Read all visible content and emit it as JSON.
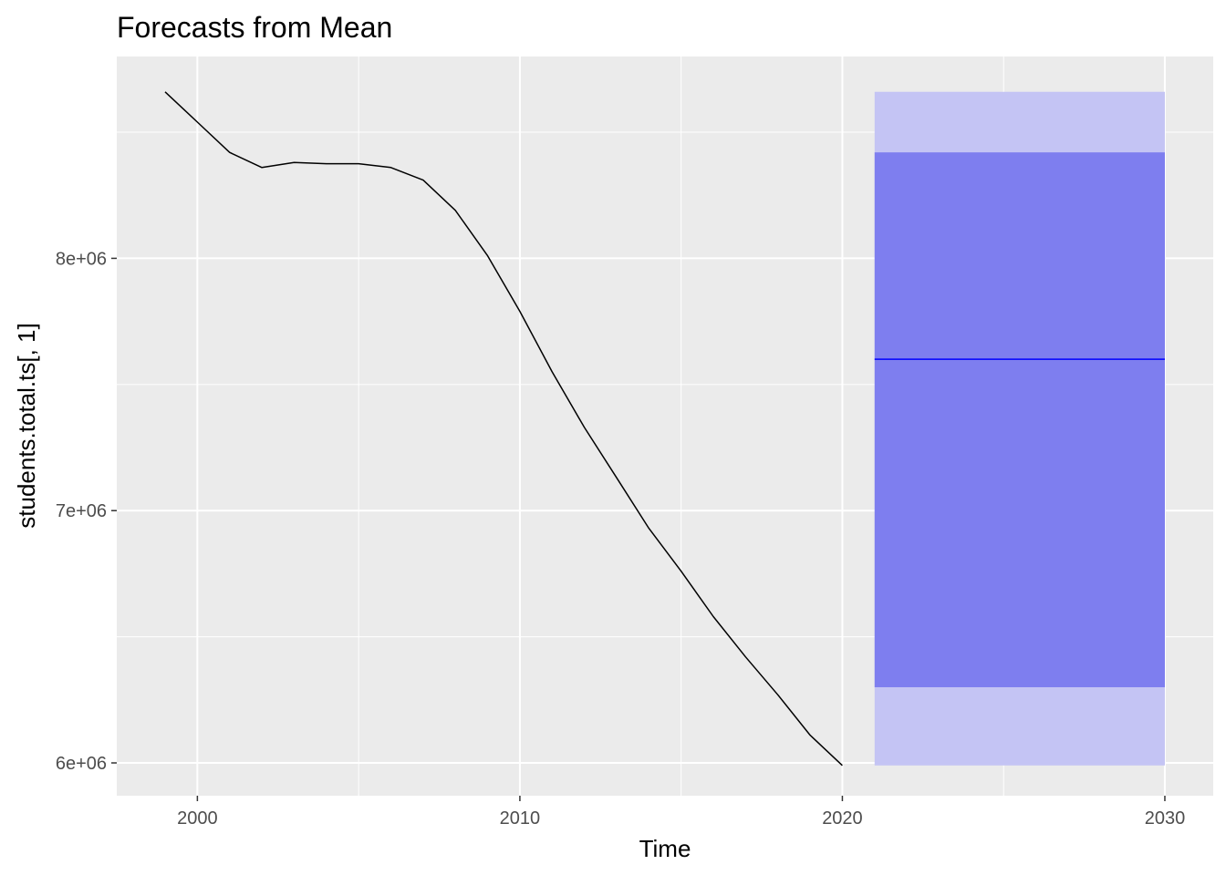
{
  "chart_data": {
    "type": "line",
    "title": "Forecasts from Mean",
    "xlabel": "Time",
    "ylabel": "students.total.ts[, 1]",
    "xlim": [
      1997.5,
      2031.5
    ],
    "ylim": [
      5870000,
      8800000
    ],
    "x_ticks": [
      2000,
      2010,
      2020,
      2030
    ],
    "x_tick_labels": [
      "2000",
      "2010",
      "2020",
      "2030"
    ],
    "y_ticks": [
      6000000,
      7000000,
      8000000
    ],
    "y_tick_labels": [
      "6e+06",
      "7e+06",
      "8e+06"
    ],
    "x_minor_ticks": [
      2005,
      2015,
      2025
    ],
    "y_minor_ticks": [
      6500000,
      7500000,
      8500000
    ],
    "grid": true,
    "series": [
      {
        "type": "line",
        "color": "#000000",
        "x": [
          1999,
          2000,
          2001,
          2002,
          2003,
          2004,
          2005,
          2006,
          2007,
          2008,
          2009,
          2010,
          2011,
          2012,
          2013,
          2014,
          2015,
          2016,
          2017,
          2018,
          2019,
          2020
        ],
        "y": [
          8660000,
          8540000,
          8420000,
          8360000,
          8380000,
          8375000,
          8375000,
          8360000,
          8310000,
          8190000,
          8010000,
          7790000,
          7550000,
          7330000,
          7130000,
          6930000,
          6760000,
          6580000,
          6420000,
          6270000,
          6110000,
          5990000
        ]
      }
    ],
    "forecast": {
      "x_start": 2021,
      "x_end": 2030,
      "mean": 7600000,
      "pi80": [
        6300000,
        8420000
      ],
      "pi95": [
        5990000,
        8660000
      ],
      "mean_color": "#0000ff",
      "pi80_color": "#7e7eef",
      "pi95_color": "#c4c4f4"
    },
    "panel_background": "#ebebeb",
    "grid_color": "#ffffff"
  }
}
